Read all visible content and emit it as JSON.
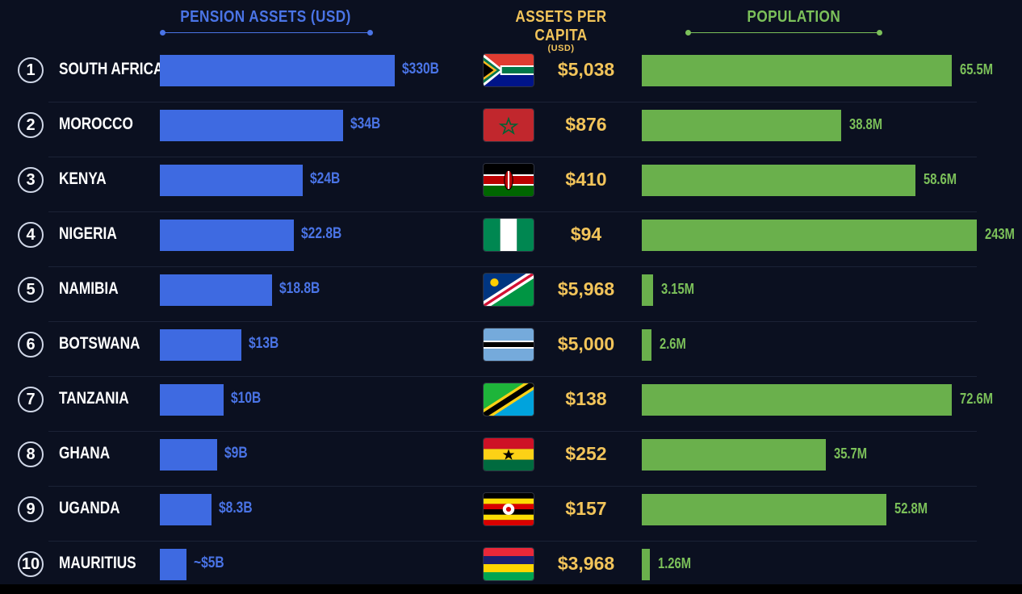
{
  "colors": {
    "background": "#0b1020",
    "pension_bar": "#3e6ae1",
    "pension_text": "#4a74e6",
    "capita_text": "#f2c45a",
    "population_bar": "#6ab04c",
    "population_text": "#7cc15a"
  },
  "headers": {
    "pension": "PENSION ASSETS (USD)",
    "capita": "ASSETS PER CAPITA",
    "capita_sub": "(USD)",
    "population": "POPULATION"
  },
  "chart_data": {
    "type": "bar",
    "categories": [
      "SOUTH AFRICA",
      "MOROCCO",
      "KENYA",
      "NIGERIA",
      "NAMIBIA",
      "BOTSWANA",
      "TANZANIA",
      "GHANA",
      "UGANDA",
      "MAURITIUS"
    ],
    "ranks": [
      "1",
      "2",
      "3",
      "4",
      "5",
      "6",
      "7",
      "8",
      "9",
      "10"
    ],
    "series": [
      {
        "name": "PENSION ASSETS (USD)",
        "values": [
          330,
          34,
          24,
          22.8,
          18.8,
          13,
          10,
          9,
          8.3,
          5
        ],
        "labels": [
          "$330B",
          "$34B",
          "$24B",
          "$22.8B",
          "$18.8B",
          "$13B",
          "$10B",
          "$9B",
          "$8.3B",
          "~$5B"
        ]
      },
      {
        "name": "ASSETS PER CAPITA",
        "values": [
          5038,
          876,
          410,
          94,
          5968,
          5000,
          138,
          252,
          157,
          3968
        ],
        "labels": [
          "$5,038",
          "$876",
          "$410",
          "$94",
          "$5,968",
          "$5,000",
          "$138",
          "$252",
          "$157",
          "$3,968"
        ]
      },
      {
        "name": "POPULATION",
        "values": [
          65.5,
          38.8,
          58.6,
          243,
          3.15,
          2.6,
          72.6,
          35.7,
          52.8,
          1.26
        ],
        "labels": [
          "65.5M",
          "38.8M",
          "58.6M",
          "243M",
          "3.15M",
          "2.6M",
          "72.6M",
          "35.7M",
          "52.8M",
          "1.26M"
        ]
      }
    ],
    "flags": [
      "south-africa-flag",
      "morocco-flag",
      "kenya-flag",
      "nigeria-flag",
      "namibia-flag",
      "botswana-flag",
      "tanzania-flag",
      "ghana-flag",
      "uganda-flag",
      "mauritius-flag"
    ]
  }
}
